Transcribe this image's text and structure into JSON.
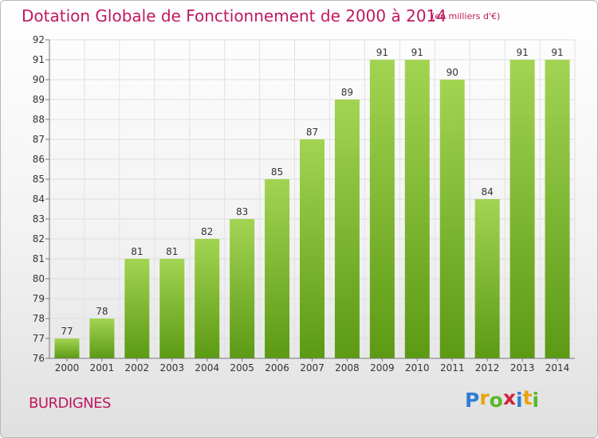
{
  "header": {
    "title": "Dotation Globale de Fonctionnement de 2000 à 2014",
    "subtitle": "(en milliers d'€)"
  },
  "footer": {
    "place": "BURDIGNES",
    "logo_text": "Proxiti",
    "logo_colors": [
      "#2f7fd6",
      "#e8a40c",
      "#59b82b",
      "#d2233b",
      "#2f7fd6",
      "#e8a40c",
      "#59b82b"
    ]
  },
  "colors": {
    "bar_light": "#a2d452",
    "bar_dark": "#5c9a14",
    "title": "#c0185f",
    "axis_text": "#333333"
  },
  "chart_data": {
    "type": "bar",
    "categories": [
      "2000",
      "2001",
      "2002",
      "2003",
      "2004",
      "2005",
      "2006",
      "2007",
      "2008",
      "2009",
      "2010",
      "2011",
      "2012",
      "2013",
      "2014"
    ],
    "values": [
      77,
      78,
      81,
      81,
      82,
      83,
      85,
      87,
      89,
      91,
      91,
      90,
      84,
      91,
      91
    ],
    "title": "Dotation Globale de Fonctionnement de 2000 à 2014",
    "subtitle": "(en milliers d'€)",
    "ylim": [
      76,
      92
    ],
    "yticks": [
      76,
      77,
      78,
      79,
      80,
      81,
      82,
      83,
      84,
      85,
      86,
      87,
      88,
      89,
      90,
      91,
      92
    ],
    "grid": true,
    "data_labels": true
  }
}
